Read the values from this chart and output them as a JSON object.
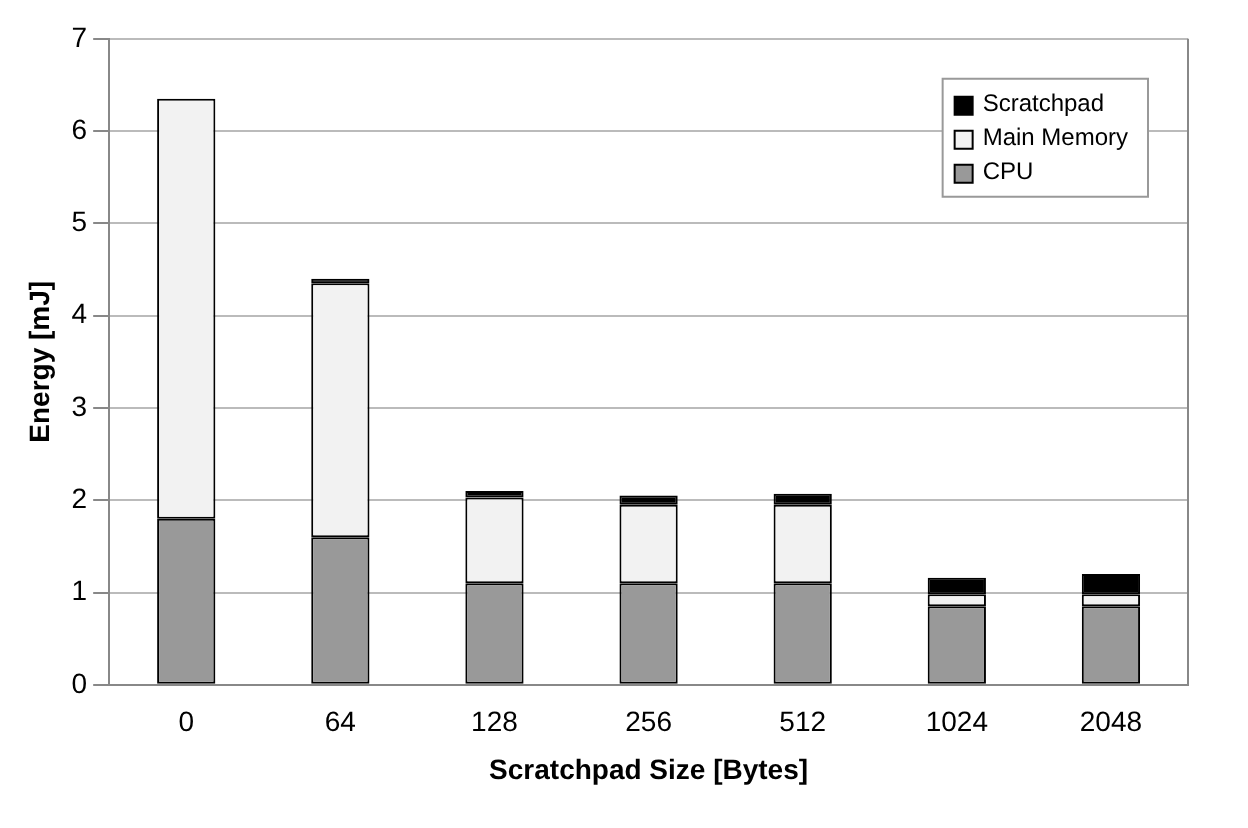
{
  "chart_data": {
    "type": "bar",
    "stacked": true,
    "xlabel": "Scratchpad Size [Bytes]",
    "ylabel": "Energy [mJ]",
    "categories": [
      "0",
      "64",
      "128",
      "256",
      "512",
      "1024",
      "2048"
    ],
    "series": [
      {
        "name": "CPU",
        "color": "#999999",
        "values": [
          1.8,
          1.6,
          1.1,
          1.1,
          1.1,
          0.85,
          0.85
        ]
      },
      {
        "name": "Main Memory",
        "color": "#f2f2f2",
        "values": [
          4.55,
          2.75,
          0.93,
          0.85,
          0.85,
          0.13,
          0.13
        ]
      },
      {
        "name": "Scratchpad",
        "color": "#000000",
        "values": [
          0,
          0.05,
          0.07,
          0.1,
          0.12,
          0.18,
          0.22
        ]
      }
    ],
    "ylim": [
      0,
      7
    ],
    "yticks": [
      0,
      1,
      2,
      3,
      4,
      5,
      6,
      7
    ],
    "grid": "y",
    "legend": "top right"
  }
}
